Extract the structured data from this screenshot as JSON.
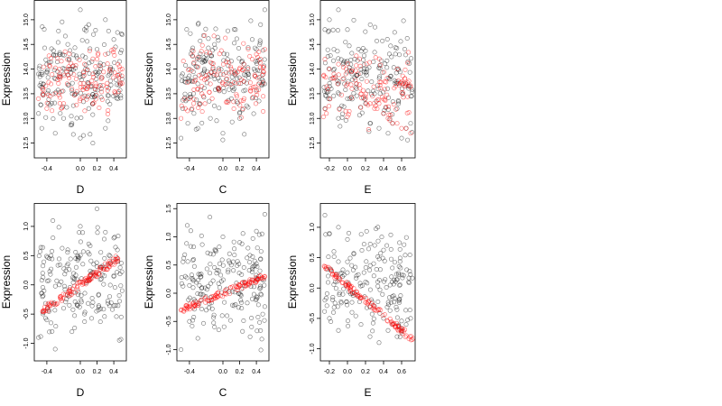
{
  "chart_data": [
    {
      "type": "scatter",
      "xlabel": "D",
      "ylabel": "Expression",
      "xlim": [
        -0.55,
        0.55
      ],
      "ylim": [
        12.2,
        15.4
      ],
      "xticks": [
        -0.4,
        0.0,
        0.2,
        0.4
      ],
      "xtick_labels": [
        "-0.4",
        "0.0",
        "0.2",
        "0.4"
      ],
      "yticks": [
        12.5,
        13.0,
        13.5,
        14.0,
        14.5,
        15.0
      ],
      "ytick_labels": [
        "12.5",
        "13.0",
        "13.5",
        "14.0",
        "14.5",
        "15.0"
      ],
      "series": [
        {
          "color": "#000000",
          "marker": "open-circle",
          "pattern": "cloud",
          "x": [
            -0.5,
            -0.5,
            -0.46,
            -0.45,
            -0.4,
            -0.38,
            -0.3,
            -0.3,
            -0.25,
            -0.2,
            -0.2,
            -0.15,
            -0.1,
            -0.1,
            -0.05,
            0.0,
            0.0,
            0.05,
            0.1,
            0.1,
            0.15,
            0.2,
            0.25,
            0.3,
            0.3,
            0.35,
            0.4,
            0.45,
            0.5,
            0.5
          ],
          "y": [
            13.1,
            13.9,
            12.8,
            13.5,
            14.1,
            13.3,
            12.7,
            13.8,
            14.3,
            13.0,
            13.9,
            14.5,
            12.9,
            14.0,
            13.5,
            15.2,
            12.6,
            14.8,
            13.2,
            14.9,
            12.5,
            14.4,
            13.6,
            15.0,
            12.8,
            13.9,
            14.6,
            13.4,
            14.7,
            13.8
          ],
          "count": 180,
          "x_range": [
            -0.5,
            0.5
          ],
          "y_range": [
            12.4,
            15.3
          ]
        },
        {
          "color": "#ff0000",
          "marker": "open-circle",
          "pattern": "cloud",
          "x": [
            -0.5,
            -0.45,
            -0.4,
            -0.35,
            -0.3,
            -0.25,
            -0.2,
            -0.15,
            -0.1,
            -0.05,
            0.0,
            0.05,
            0.1,
            0.15,
            0.2,
            0.25,
            0.3,
            0.35,
            0.4,
            0.45,
            0.5
          ],
          "y": [
            13.4,
            13.6,
            13.2,
            13.7,
            13.5,
            13.9,
            13.3,
            14.0,
            13.6,
            13.8,
            13.4,
            14.1,
            13.7,
            13.9,
            14.2,
            13.8,
            14.3,
            14.0,
            14.4,
            14.1,
            14.0
          ],
          "count": 110,
          "x_range": [
            -0.5,
            0.5
          ],
          "y_range": [
            12.9,
            14.6
          ]
        }
      ]
    },
    {
      "type": "scatter",
      "xlabel": "C",
      "ylabel": "Expression",
      "xlim": [
        -0.55,
        0.55
      ],
      "ylim": [
        12.2,
        15.4
      ],
      "xticks": [
        -0.4,
        0.0,
        0.2,
        0.4
      ],
      "xtick_labels": [
        "-0.4",
        "0.0",
        "0.2",
        "0.4"
      ],
      "yticks": [
        12.5,
        13.0,
        13.5,
        14.0,
        14.5,
        15.0
      ],
      "ytick_labels": [
        "12.5",
        "13.0",
        "13.5",
        "14.0",
        "14.5",
        "15.0"
      ],
      "series": [
        {
          "color": "#000000",
          "marker": "open-circle",
          "pattern": "cloud",
          "x": [
            -0.5,
            -0.48,
            -0.45,
            -0.42,
            -0.4,
            -0.35,
            -0.3,
            -0.25,
            -0.2,
            -0.15,
            -0.1,
            -0.05,
            0.0,
            0.05,
            0.1,
            0.15,
            0.2,
            0.25,
            0.3,
            0.35,
            0.4,
            0.45,
            0.5,
            0.5
          ],
          "y": [
            12.6,
            13.2,
            13.8,
            12.9,
            14.0,
            13.5,
            12.8,
            13.9,
            14.2,
            13.0,
            14.5,
            13.6,
            12.7,
            14.3,
            13.4,
            14.8,
            13.1,
            14.1,
            13.9,
            14.6,
            14.4,
            14.9,
            15.2,
            13.7
          ],
          "count": 180,
          "x_range": [
            -0.5,
            0.5
          ],
          "y_range": [
            12.4,
            15.3
          ]
        },
        {
          "color": "#ff0000",
          "marker": "open-circle",
          "pattern": "cloud",
          "x": [
            -0.5,
            -0.45,
            -0.4,
            -0.35,
            -0.3,
            -0.25,
            -0.2,
            -0.15,
            -0.1,
            -0.05,
            0.0,
            0.05,
            0.1,
            0.15,
            0.2,
            0.25,
            0.3,
            0.35,
            0.4,
            0.45,
            0.5
          ],
          "y": [
            13.0,
            13.2,
            13.4,
            13.3,
            13.6,
            13.5,
            13.8,
            13.7,
            13.9,
            13.6,
            13.7,
            13.8,
            14.0,
            13.9,
            14.0,
            14.1,
            14.0,
            14.2,
            14.3,
            14.2,
            14.4
          ],
          "count": 110,
          "x_range": [
            -0.5,
            0.5
          ],
          "y_range": [
            12.8,
            14.8
          ]
        }
      ]
    },
    {
      "type": "scatter",
      "xlabel": "E",
      "ylabel": "Expression",
      "xlim": [
        -0.3,
        0.75
      ],
      "ylim": [
        12.2,
        15.4
      ],
      "xticks": [
        -0.2,
        0.0,
        0.2,
        0.4,
        0.6
      ],
      "xtick_labels": [
        "-0.2",
        "0.0",
        "0.2",
        "0.4",
        "0.6"
      ],
      "yticks": [
        12.5,
        13.0,
        13.5,
        14.0,
        14.5,
        15.0
      ],
      "ytick_labels": [
        "12.5",
        "13.0",
        "13.5",
        "14.0",
        "14.5",
        "15.0"
      ],
      "series": [
        {
          "color": "#000000",
          "marker": "open-circle",
          "pattern": "cloud",
          "x": [
            -0.25,
            -0.25,
            -0.2,
            -0.18,
            -0.15,
            -0.1,
            -0.1,
            -0.05,
            0.0,
            0.0,
            0.05,
            0.1,
            0.15,
            0.2,
            0.25,
            0.3,
            0.35,
            0.4,
            0.45,
            0.5,
            0.55,
            0.6,
            0.65,
            0.7
          ],
          "y": [
            14.8,
            13.2,
            15.0,
            13.6,
            14.4,
            15.2,
            13.0,
            14.1,
            14.8,
            13.4,
            13.9,
            13.6,
            14.0,
            13.3,
            12.9,
            13.5,
            12.8,
            13.1,
            12.7,
            12.9,
            13.2,
            12.6,
            12.8,
            12.9
          ],
          "count": 180,
          "x_range": [
            -0.27,
            0.72
          ],
          "y_range": [
            12.4,
            15.3
          ]
        },
        {
          "color": "#ff0000",
          "marker": "open-circle",
          "pattern": "cloud",
          "x": [
            -0.25,
            -0.2,
            -0.15,
            -0.1,
            -0.05,
            0.0,
            0.05,
            0.1,
            0.15,
            0.2,
            0.25,
            0.3,
            0.35,
            0.4,
            0.45,
            0.5,
            0.55,
            0.6,
            0.65,
            0.7
          ],
          "y": [
            14.2,
            14.0,
            13.9,
            14.1,
            13.8,
            13.7,
            13.6,
            13.7,
            13.5,
            13.4,
            13.3,
            13.2,
            13.3,
            13.1,
            13.0,
            12.9,
            12.9,
            12.8,
            12.8,
            12.7
          ],
          "count": 110,
          "x_range": [
            -0.27,
            0.7
          ],
          "y_range": [
            12.6,
            14.6
          ]
        }
      ]
    },
    {
      "type": "scatter",
      "xlabel": "D",
      "ylabel": "Expression",
      "xlim": [
        -0.55,
        0.55
      ],
      "ylim": [
        -1.3,
        1.4
      ],
      "xticks": [
        -0.4,
        0.0,
        0.2,
        0.4
      ],
      "xtick_labels": [
        "-0.4",
        "0.0",
        "0.2",
        "0.4"
      ],
      "yticks": [
        -1.0,
        -0.5,
        0.0,
        0.5,
        1.0
      ],
      "ytick_labels": [
        "-1.0",
        "-0.5",
        "0.0",
        "0.5",
        "1.0"
      ],
      "series": [
        {
          "color": "#000000",
          "marker": "open-circle",
          "pattern": "cloud",
          "x": [
            -0.5,
            -0.45,
            -0.4,
            -0.35,
            -0.3,
            -0.25,
            -0.2,
            -0.15,
            -0.1,
            -0.05,
            0.0,
            0.05,
            0.1,
            0.15,
            0.2,
            0.25,
            0.3,
            0.35,
            0.4,
            0.45,
            0.5
          ],
          "y": [
            -0.9,
            0.2,
            -0.6,
            0.5,
            -1.1,
            0.0,
            -0.4,
            0.6,
            -0.8,
            0.3,
            1.0,
            -0.5,
            0.7,
            -0.3,
            1.3,
            0.1,
            0.9,
            -0.2,
            0.8,
            0.4,
            -0.1
          ],
          "count": 180,
          "x_range": [
            -0.5,
            0.5
          ],
          "y_range": [
            -1.2,
            1.3
          ]
        },
        {
          "color": "#ff0000",
          "marker": "open-circle",
          "pattern": "line",
          "x": [
            -0.45,
            0.45
          ],
          "y": [
            -0.45,
            0.45
          ],
          "count": 110,
          "spread": 0.06
        }
      ]
    },
    {
      "type": "scatter",
      "xlabel": "C",
      "ylabel": "Expression",
      "xlim": [
        -0.55,
        0.55
      ],
      "ylim": [
        -1.2,
        1.6
      ],
      "xticks": [
        -0.4,
        0.0,
        0.2,
        0.4
      ],
      "xtick_labels": [
        "-0.4",
        "0.0",
        "0.2",
        "0.4"
      ],
      "yticks": [
        -1.0,
        -0.5,
        0.0,
        0.5,
        1.0,
        1.5
      ],
      "ytick_labels": [
        "-1.0",
        "-0.5",
        "0.0",
        "0.5",
        "1.0",
        "1.5"
      ],
      "series": [
        {
          "color": "#000000",
          "marker": "open-circle",
          "pattern": "cloud",
          "x": [
            -0.5,
            -0.45,
            -0.4,
            -0.35,
            -0.3,
            -0.25,
            -0.2,
            -0.15,
            -0.1,
            -0.05,
            0.0,
            0.05,
            0.1,
            0.15,
            0.2,
            0.25,
            0.3,
            0.35,
            0.4,
            0.45,
            0.5
          ],
          "y": [
            -1.0,
            0.3,
            -0.5,
            0.6,
            -0.8,
            0.1,
            -0.3,
            0.7,
            -0.6,
            0.4,
            1.0,
            -0.4,
            0.5,
            -0.2,
            0.9,
            0.2,
            0.8,
            -0.1,
            1.1,
            0.6,
            1.4
          ],
          "count": 180,
          "x_range": [
            -0.5,
            0.5
          ],
          "y_range": [
            -1.1,
            1.45
          ]
        },
        {
          "color": "#ff0000",
          "marker": "open-circle",
          "pattern": "line",
          "x": [
            -0.5,
            0.5
          ],
          "y": [
            -0.3,
            0.3
          ],
          "count": 110,
          "spread": 0.05
        }
      ]
    },
    {
      "type": "scatter",
      "xlabel": "E",
      "ylabel": "Expression",
      "xlim": [
        -0.3,
        0.75
      ],
      "ylim": [
        -1.2,
        1.4
      ],
      "xticks": [
        -0.2,
        0.0,
        0.2,
        0.4,
        0.6
      ],
      "xtick_labels": [
        "-0.2",
        "0.0",
        "0.2",
        "0.4",
        "0.6"
      ],
      "yticks": [
        -1.0,
        -0.5,
        0.0,
        0.5,
        1.0
      ],
      "ytick_labels": [
        "-1.0",
        "-0.5",
        "0.0",
        "0.5",
        "1.0"
      ],
      "series": [
        {
          "color": "#000000",
          "marker": "open-circle",
          "pattern": "cloud",
          "x": [
            -0.25,
            -0.25,
            -0.2,
            -0.2,
            -0.15,
            -0.1,
            -0.1,
            -0.05,
            0.0,
            0.05,
            0.1,
            0.15,
            0.2,
            0.25,
            0.3,
            0.35,
            0.4,
            0.45,
            0.5,
            0.55,
            0.6,
            0.65,
            0.7
          ],
          "y": [
            1.2,
            -0.2,
            0.9,
            -0.5,
            0.6,
            1.0,
            -0.7,
            0.3,
            0.8,
            -0.4,
            0.2,
            -0.6,
            0.1,
            -0.8,
            -0.3,
            -0.9,
            -0.5,
            -0.7,
            -0.6,
            -0.8,
            -0.7,
            -0.6,
            -0.5
          ],
          "count": 180,
          "x_range": [
            -0.27,
            0.72
          ],
          "y_range": [
            -1.1,
            1.3
          ]
        },
        {
          "color": "#ff0000",
          "marker": "open-circle",
          "pattern": "line",
          "x": [
            -0.25,
            0.72
          ],
          "y": [
            0.35,
            -0.85
          ],
          "count": 110,
          "spread": 0.05
        }
      ]
    }
  ]
}
